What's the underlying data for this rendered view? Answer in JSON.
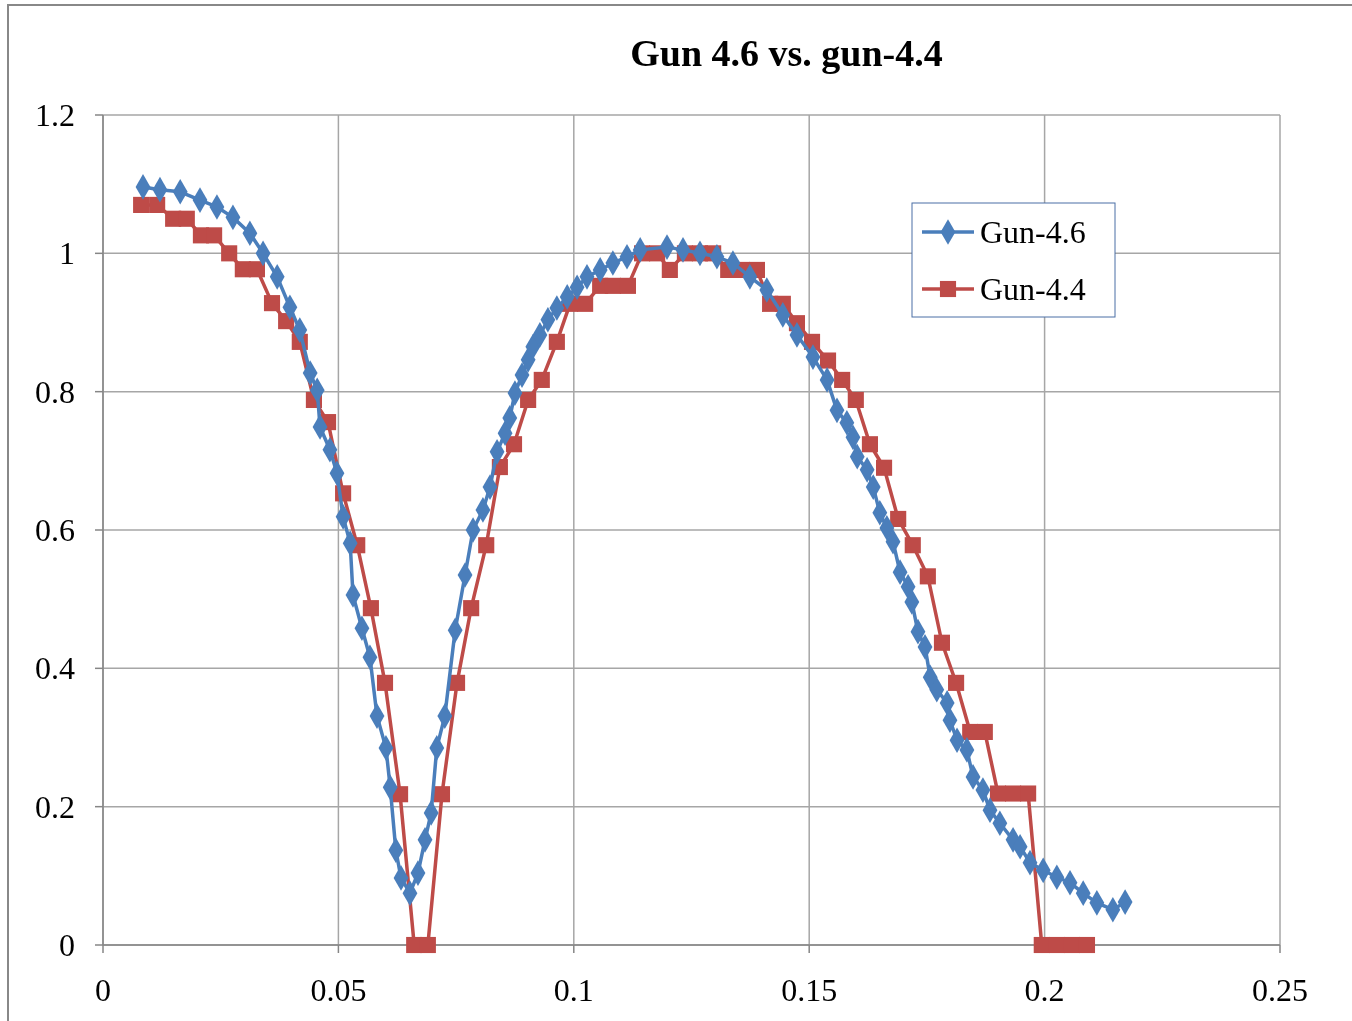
{
  "chart_data": {
    "type": "line",
    "title": "Gun 4.6 vs. gun-4.4",
    "xlim": [
      0,
      0.25
    ],
    "xticks": [
      0,
      0.05,
      0.1,
      0.15,
      0.2,
      0.25
    ],
    "ylim": [
      0,
      1.2
    ],
    "yticks": [
      0,
      0.2,
      0.4,
      0.6,
      0.8,
      1,
      1.2
    ],
    "grid": true,
    "legend": "top right",
    "line_style": "solid",
    "series": [
      {
        "name": "Gun-4.6",
        "color": "#4a7ebb",
        "marker": "diamond",
        "x": [
          0.0085,
          0.0121,
          0.0164,
          0.0206,
          0.0242,
          0.0276,
          0.0312,
          0.034,
          0.037,
          0.0397,
          0.0418,
          0.044,
          0.0455,
          0.0461,
          0.0482,
          0.0497,
          0.051,
          0.0525,
          0.0531,
          0.055,
          0.0567,
          0.0582,
          0.0601,
          0.061,
          0.0622,
          0.0633,
          0.0652,
          0.0669,
          0.0684,
          0.0697,
          0.0709,
          0.0726,
          0.0748,
          0.0769,
          0.0786,
          0.0807,
          0.0822,
          0.0837,
          0.0854,
          0.0864,
          0.0875,
          0.089,
          0.0903,
          0.0913,
          0.0928,
          0.0945,
          0.0964,
          0.0986,
          0.1007,
          0.1028,
          0.1056,
          0.1083,
          0.1113,
          0.1141,
          0.1198,
          0.1232,
          0.1268,
          0.1304,
          0.1338,
          0.1374,
          0.141,
          0.1444,
          0.1474,
          0.1508,
          0.1538,
          0.1559,
          0.158,
          0.1593,
          0.1602,
          0.1623,
          0.1636,
          0.165,
          0.1665,
          0.1678,
          0.1693,
          0.171,
          0.1718,
          0.1731,
          0.1746,
          0.1757,
          0.1771,
          0.1793,
          0.1799,
          0.1814,
          0.1835,
          0.1848,
          0.1869,
          0.1884,
          0.1905,
          0.1933,
          0.1948,
          0.1969,
          0.1997,
          0.2026,
          0.2054,
          0.2082,
          0.2111,
          0.2145,
          0.2171
        ],
        "values": [
          1.096,
          1.092,
          1.089,
          1.077,
          1.067,
          1.052,
          1.029,
          1.0,
          0.966,
          0.922,
          0.889,
          0.827,
          0.802,
          0.749,
          0.716,
          0.682,
          0.619,
          0.581,
          0.506,
          0.458,
          0.416,
          0.331,
          0.285,
          0.228,
          0.137,
          0.097,
          0.075,
          0.104,
          0.152,
          0.191,
          0.285,
          0.331,
          0.455,
          0.535,
          0.6,
          0.629,
          0.662,
          0.713,
          0.74,
          0.762,
          0.798,
          0.824,
          0.846,
          0.865,
          0.882,
          0.904,
          0.921,
          0.937,
          0.951,
          0.966,
          0.976,
          0.986,
          0.995,
          1.005,
          1.009,
          1.005,
          1.0,
          0.995,
          0.986,
          0.966,
          0.947,
          0.911,
          0.882,
          0.85,
          0.817,
          0.773,
          0.755,
          0.734,
          0.706,
          0.687,
          0.662,
          0.625,
          0.603,
          0.583,
          0.539,
          0.518,
          0.496,
          0.453,
          0.431,
          0.387,
          0.369,
          0.35,
          0.325,
          0.296,
          0.282,
          0.243,
          0.224,
          0.195,
          0.176,
          0.152,
          0.142,
          0.119,
          0.108,
          0.098,
          0.09,
          0.075,
          0.061,
          0.051,
          0.062
        ]
      },
      {
        "name": "Gun-4.4",
        "color": "#be4b48",
        "marker": "square",
        "x": [
          0.0081,
          0.0115,
          0.0149,
          0.0178,
          0.0208,
          0.0236,
          0.0268,
          0.0297,
          0.0327,
          0.0359,
          0.0389,
          0.0418,
          0.0448,
          0.0478,
          0.051,
          0.054,
          0.0569,
          0.0599,
          0.0631,
          0.0661,
          0.069,
          0.072,
          0.0752,
          0.0782,
          0.0814,
          0.0843,
          0.0873,
          0.0903,
          0.0932,
          0.0964,
          0.0992,
          0.1024,
          0.1056,
          0.1083,
          0.1115,
          0.1145,
          0.1177,
          0.1204,
          0.1236,
          0.1268,
          0.1296,
          0.1328,
          0.1357,
          0.1389,
          0.1417,
          0.1444,
          0.1474,
          0.1506,
          0.154,
          0.157,
          0.1599,
          0.1629,
          0.1659,
          0.1689,
          0.172,
          0.1752,
          0.1782,
          0.1812,
          0.1842,
          0.1873,
          0.1901,
          0.1933,
          0.1965,
          0.1994,
          0.2026,
          0.2058,
          0.209
        ],
        "values": [
          1.07,
          1.07,
          1.05,
          1.05,
          1.026,
          1.026,
          1.0,
          0.977,
          0.977,
          0.928,
          0.902,
          0.872,
          0.788,
          0.756,
          0.653,
          0.578,
          0.487,
          0.379,
          0.218,
          0,
          0,
          0.218,
          0.379,
          0.487,
          0.578,
          0.691,
          0.724,
          0.788,
          0.817,
          0.872,
          0.927,
          0.927,
          0.953,
          0.953,
          0.953,
          1.0,
          1.0,
          0.976,
          1.0,
          1.0,
          1.0,
          0.976,
          0.976,
          0.976,
          0.927,
          0.927,
          0.899,
          0.872,
          0.845,
          0.817,
          0.788,
          0.724,
          0.69,
          0.616,
          0.578,
          0.533,
          0.437,
          0.379,
          0.308,
          0.308,
          0.219,
          0.219,
          0.219,
          0,
          0,
          0,
          0
        ]
      }
    ]
  }
}
